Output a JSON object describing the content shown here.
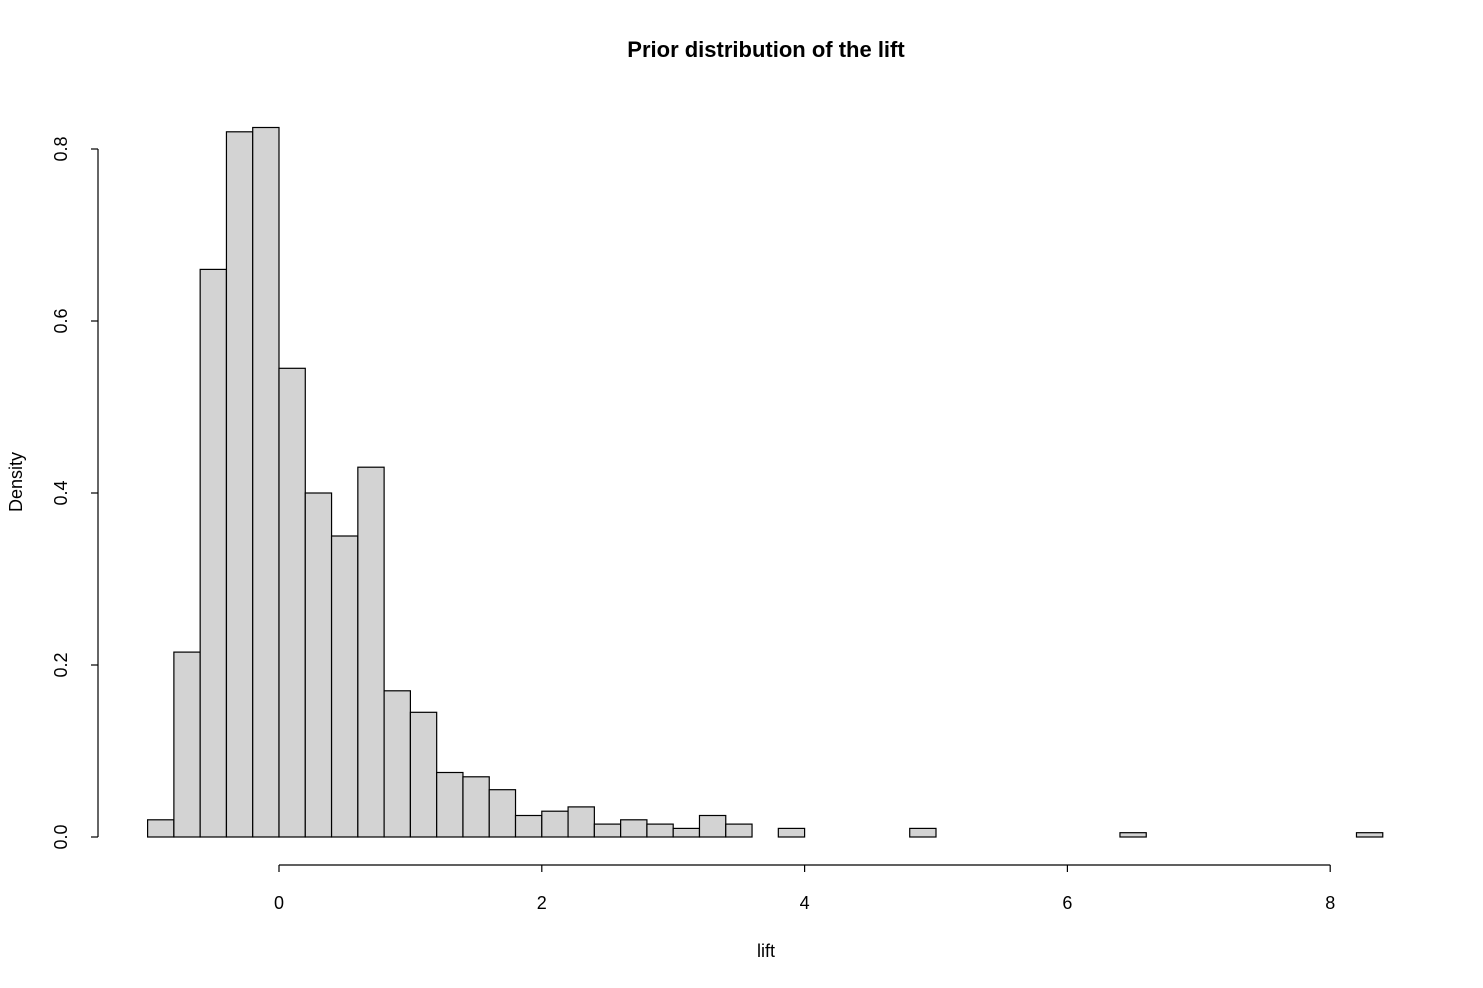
{
  "chart_data": {
    "type": "bar",
    "title": "Prior distribution of the lift",
    "xlabel": "lift",
    "ylabel": "Density",
    "bar_color": "#d3d3d3",
    "border_color": "#000000",
    "background_color": "#ffffff",
    "grid": false,
    "legend": "none",
    "bin_width": 0.2,
    "bin_start": -1.0,
    "xlim": [
      -1.0,
      8.4
    ],
    "ylim": [
      0,
      0.825
    ],
    "x_ticks": [
      0,
      2,
      4,
      6,
      8
    ],
    "x_tick_labels": [
      "0",
      "2",
      "4",
      "6",
      "8"
    ],
    "y_ticks": [
      0.0,
      0.2,
      0.4,
      0.6,
      0.8
    ],
    "y_tick_labels": [
      "0.0",
      "0.2",
      "0.4",
      "0.6",
      "0.8"
    ],
    "values": [
      0.02,
      0.215,
      0.66,
      0.82,
      0.825,
      0.545,
      0.4,
      0.35,
      0.43,
      0.17,
      0.145,
      0.075,
      0.07,
      0.055,
      0.025,
      0.03,
      0.035,
      0.015,
      0.02,
      0.015,
      0.01,
      0.025,
      0.015,
      0.0,
      0.01,
      0.0,
      0.0,
      0.0,
      0.0,
      0.01,
      0.0,
      0.0,
      0.0,
      0.0,
      0.0,
      0.0,
      0.0,
      0.005,
      0.0,
      0.0,
      0.0,
      0.0,
      0.0,
      0.0,
      0.0,
      0.0,
      0.005
    ]
  }
}
